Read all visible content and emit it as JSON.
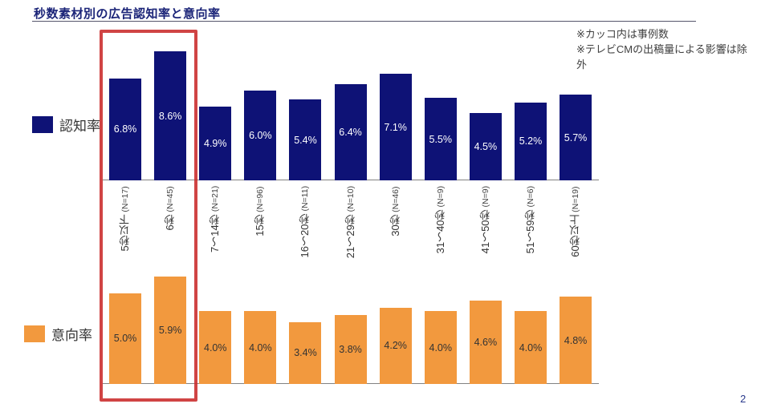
{
  "slide": {
    "title": "秒数素材別の広告認知率と意向率",
    "notes": [
      "※カッコ内は事例数",
      "※テレビCMの出稿量による影響は除外"
    ],
    "page_number": "2"
  },
  "legend": {
    "awareness_label": "認知率",
    "intent_label": "意向率"
  },
  "colors": {
    "navy": "#0e1276",
    "orange": "#F2993E",
    "highlight_red": "#C92A2A",
    "title_navy": "#1b2478"
  },
  "chart_data": {
    "type": "bar",
    "title": "秒数素材別の広告認知率と意向率",
    "unit": "%",
    "categories": [
      {
        "label": "5秒以下",
        "n": "(N=17)"
      },
      {
        "label": "6秒",
        "n": "(N=45)"
      },
      {
        "label": "7〜14秒",
        "n": "(N=21)"
      },
      {
        "label": "15秒",
        "n": "(N=96)"
      },
      {
        "label": "16〜20秒",
        "n": "(N=11)"
      },
      {
        "label": "21〜29秒",
        "n": "(N=10)"
      },
      {
        "label": "30秒",
        "n": "(N=46)"
      },
      {
        "label": "31〜40秒",
        "n": "(N=9)"
      },
      {
        "label": "41〜50秒",
        "n": "(N=9)"
      },
      {
        "label": "51〜59秒",
        "n": "(N=6)"
      },
      {
        "label": "60秒以上",
        "n": "(N=19)"
      }
    ],
    "series": [
      {
        "name": "認知率",
        "color": "#0e1276",
        "values": [
          6.8,
          8.6,
          4.9,
          6.0,
          5.4,
          6.4,
          7.1,
          5.5,
          4.5,
          5.2,
          5.7
        ]
      },
      {
        "name": "意向率",
        "color": "#F2993E",
        "values": [
          5.0,
          5.9,
          4.0,
          4.0,
          3.4,
          3.8,
          4.2,
          4.0,
          4.6,
          4.0,
          4.8
        ]
      }
    ],
    "highlight": {
      "categories": [
        "5秒以下",
        "6秒"
      ],
      "style": "red-box"
    },
    "layout_hints": {
      "orientation": "vertical-bars",
      "two_rows": true,
      "category_labels_rotated": true
    }
  }
}
